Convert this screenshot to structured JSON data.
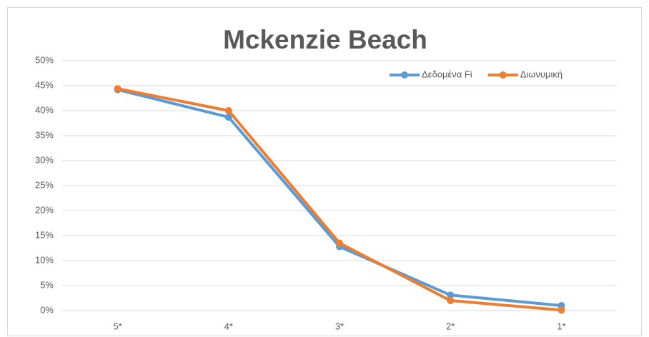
{
  "chart_data": {
    "type": "line",
    "title": "Mckenzie Beach",
    "categories": [
      "5*",
      "4*",
      "3*",
      "2*",
      "1*"
    ],
    "series": [
      {
        "name": "Δεδομένα Fi",
        "color": "#5b9bd5",
        "values": [
          44.2,
          38.7,
          12.8,
          3.1,
          1.0
        ]
      },
      {
        "name": "Διωνυμική",
        "color": "#ed7d31",
        "values": [
          44.4,
          40.0,
          13.5,
          2.0,
          0.1
        ]
      }
    ],
    "ylim": [
      0,
      50
    ],
    "yticks": [
      {
        "value": 0,
        "label": "0%"
      },
      {
        "value": 5,
        "label": "5%"
      },
      {
        "value": 10,
        "label": "10%"
      },
      {
        "value": 15,
        "label": "15%"
      },
      {
        "value": 20,
        "label": "20%"
      },
      {
        "value": 25,
        "label": "25%"
      },
      {
        "value": 30,
        "label": "30%"
      },
      {
        "value": 35,
        "label": "35%"
      },
      {
        "value": 40,
        "label": "40%"
      },
      {
        "value": 45,
        "label": "45%"
      },
      {
        "value": 50,
        "label": "50%"
      }
    ],
    "grid": true,
    "legend": "top-right"
  }
}
